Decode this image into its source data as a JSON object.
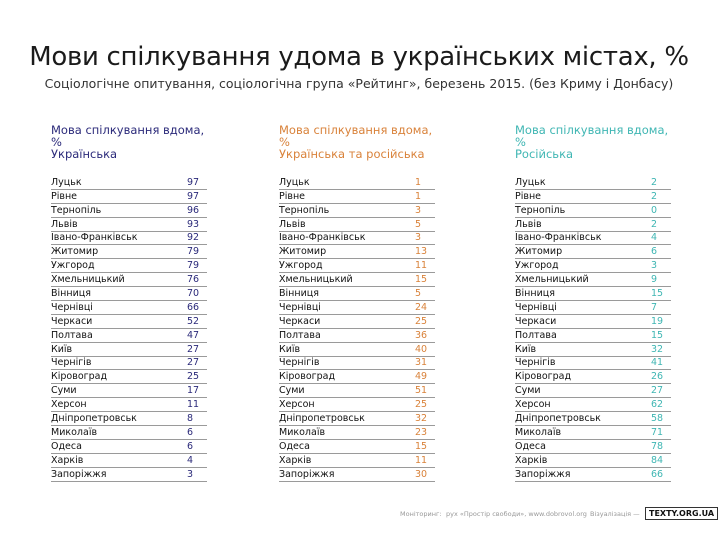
{
  "chart_data": {
    "type": "table",
    "title": "Мови спілкування удома в українських містах, %",
    "subtitle": "Соціологічне опитування, соціологічна група «Рейтинг», березень 2015. (без Криму і Донбасу)",
    "columns": [
      {
        "header_line1": "Мова спілкування вдома, %",
        "header_line2": "Українська",
        "color": "#2b2a7a",
        "rows": [
          {
            "city": "Луцьк",
            "value": 97
          },
          {
            "city": "Рівне",
            "value": 97
          },
          {
            "city": "Тернопіль",
            "value": 96
          },
          {
            "city": "Львів",
            "value": 93
          },
          {
            "city": "Івано-Франківськ",
            "value": 92
          },
          {
            "city": "Житомир",
            "value": 79
          },
          {
            "city": "Ужгород",
            "value": 79
          },
          {
            "city": "Хмельницький",
            "value": 76
          },
          {
            "city": "Вінниця",
            "value": 70
          },
          {
            "city": "Чернівці",
            "value": 66
          },
          {
            "city": "Черкаси",
            "value": 52
          },
          {
            "city": "Полтава",
            "value": 47
          },
          {
            "city": "Київ",
            "value": 27
          },
          {
            "city": "Чернігів",
            "value": 27
          },
          {
            "city": "Кіровоград",
            "value": 25
          },
          {
            "city": "Суми",
            "value": 17
          },
          {
            "city": "Херсон",
            "value": 11
          },
          {
            "city": "Дніпропетровськ",
            "value": 8
          },
          {
            "city": "Миколаїв",
            "value": 6
          },
          {
            "city": "Одеса",
            "value": 6
          },
          {
            "city": "Харків",
            "value": 4
          },
          {
            "city": "Запоріжжя",
            "value": 3
          }
        ]
      },
      {
        "header_line1": "Мова спілкування вдома, %",
        "header_line2": "Українська та російська",
        "color": "#d9823a",
        "rows": [
          {
            "city": "Луцьк",
            "value": 1
          },
          {
            "city": "Рівне",
            "value": 1
          },
          {
            "city": "Тернопіль",
            "value": 3
          },
          {
            "city": "Львів",
            "value": 5
          },
          {
            "city": "Івано-Франківськ",
            "value": 3
          },
          {
            "city": "Житомир",
            "value": 13
          },
          {
            "city": "Ужгород",
            "value": 11
          },
          {
            "city": "Хмельницький",
            "value": 15
          },
          {
            "city": "Вінниця",
            "value": 5
          },
          {
            "city": "Чернівці",
            "value": 24
          },
          {
            "city": "Черкаси",
            "value": 25
          },
          {
            "city": "Полтава",
            "value": 36
          },
          {
            "city": "Київ",
            "value": 40
          },
          {
            "city": "Чернігів",
            "value": 31
          },
          {
            "city": "Кіровоград",
            "value": 49
          },
          {
            "city": "Суми",
            "value": 51
          },
          {
            "city": "Херсон",
            "value": 25
          },
          {
            "city": "Дніпропетровськ",
            "value": 32
          },
          {
            "city": "Миколаїв",
            "value": 23
          },
          {
            "city": "Одеса",
            "value": 15
          },
          {
            "city": "Харків",
            "value": 11
          },
          {
            "city": "Запоріжжя",
            "value": 30
          }
        ]
      },
      {
        "header_line1": "Мова спілкування вдома, %",
        "header_line2": "Російська",
        "color": "#3fb6b3",
        "rows": [
          {
            "city": "Луцьк",
            "value": 2
          },
          {
            "city": "Рівне",
            "value": 2
          },
          {
            "city": "Тернопіль",
            "value": 0
          },
          {
            "city": "Львів",
            "value": 2
          },
          {
            "city": "Івано-Франківськ",
            "value": 4
          },
          {
            "city": "Житомир",
            "value": 6
          },
          {
            "city": "Ужгород",
            "value": 3
          },
          {
            "city": "Хмельницький",
            "value": 9
          },
          {
            "city": "Вінниця",
            "value": 15
          },
          {
            "city": "Чернівці",
            "value": 7
          },
          {
            "city": "Черкаси",
            "value": 19
          },
          {
            "city": "Полтава",
            "value": 15
          },
          {
            "city": "Київ",
            "value": 32
          },
          {
            "city": "Чернігів",
            "value": 41
          },
          {
            "city": "Кіровоград",
            "value": 26
          },
          {
            "city": "Суми",
            "value": 27
          },
          {
            "city": "Херсон",
            "value": 62
          },
          {
            "city": "Дніпропетровськ",
            "value": 58
          },
          {
            "city": "Миколаїв",
            "value": 71
          },
          {
            "city": "Одеса",
            "value": 78
          },
          {
            "city": "Харків",
            "value": 84
          },
          {
            "city": "Запоріжжя",
            "value": 66
          }
        ]
      }
    ]
  },
  "footer": {
    "monitoring_label": "Моніторинг:",
    "source": "рух «Простір свободи», www.dobrovol.org",
    "viz_label": "Візуалізація —",
    "logo": "TEXTY.ORG.UA"
  }
}
